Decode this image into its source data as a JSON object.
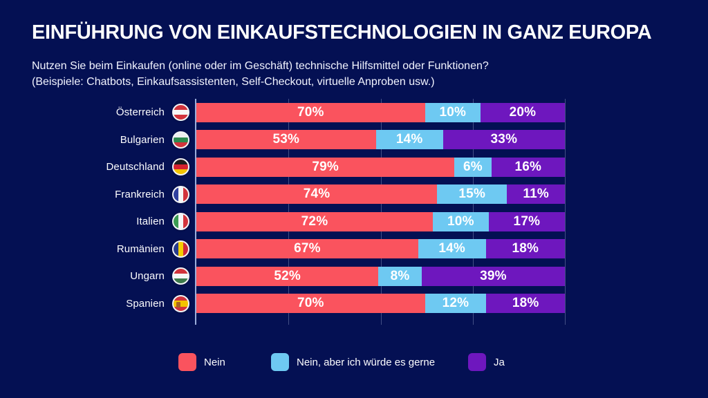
{
  "header": {
    "title": "EINFÜHRUNG VON EINKAUFSTECHNOLOGIEN IN GANZ EUROPA",
    "subtitle_line1": "Nutzen Sie beim Einkaufen (online oder im Geschäft) technische Hilfsmittel oder Funktionen?",
    "subtitle_line2": "(Beispiele: Chatbots, Einkaufsassistenten, Self-Checkout, virtuelle Anproben usw.)"
  },
  "colors": {
    "background": "#041053",
    "nein": "#fa535e",
    "nein_aber": "#6ec9f2",
    "ja": "#6e17be",
    "axis_line": "#9baedb",
    "text": "#ffffff"
  },
  "chart_data": {
    "type": "bar",
    "orientation": "horizontal",
    "stacked": true,
    "title": "EINFÜHRUNG VON EINKAUFSTECHNOLOGIEN IN GANZ EUROPA",
    "categories": [
      "Österreich",
      "Bulgarien",
      "Deutschland",
      "Frankreich",
      "Italien",
      "Rumänien",
      "Ungarn",
      "Spanien"
    ],
    "flags": [
      "austria",
      "bulgaria",
      "germany",
      "france",
      "italy",
      "romania",
      "hungary",
      "spain"
    ],
    "series": [
      {
        "name": "Nein",
        "color": "#fa535e",
        "values": [
          70,
          53,
          79,
          74,
          72,
          67,
          52,
          70
        ]
      },
      {
        "name": "Nein, aber ich würde es gerne",
        "color": "#6ec9f2",
        "values": [
          10,
          14,
          6,
          15,
          10,
          14,
          8,
          12
        ]
      },
      {
        "name": "Ja",
        "color": "#6e17be",
        "values": [
          20,
          33,
          16,
          11,
          17,
          18,
          39,
          18
        ]
      }
    ],
    "value_suffix": "%",
    "xlim": [
      0,
      100
    ],
    "gridlines_percent": [
      0,
      25,
      50,
      75,
      100
    ],
    "grid": true,
    "legend_position": "bottom"
  },
  "legend": {
    "items": [
      {
        "label": "Nein",
        "color": "#fa535e"
      },
      {
        "label": "Nein, aber ich würde es gerne",
        "color": "#6ec9f2"
      },
      {
        "label": "Ja",
        "color": "#6e17be"
      }
    ]
  }
}
